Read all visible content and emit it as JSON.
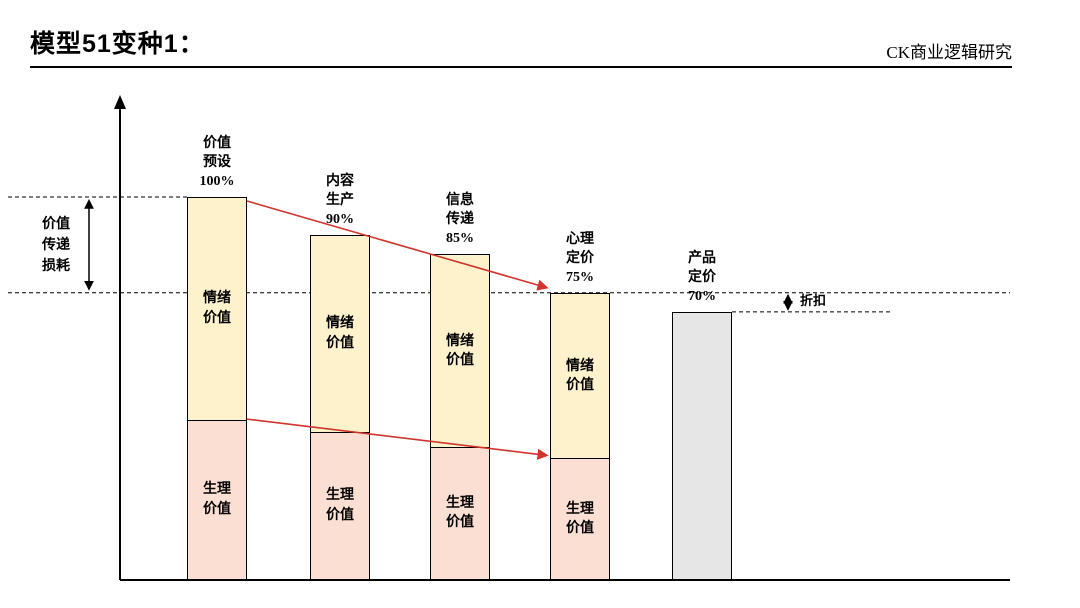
{
  "header": {
    "title": "模型51变种1：",
    "source": "CK商业逻辑研究"
  },
  "chart_data": {
    "type": "bar",
    "stacked": true,
    "ylim": [
      0,
      100
    ],
    "unit": "%",
    "grid": false,
    "legend": "none",
    "categories": [
      "价值预设",
      "内容生产",
      "信息传递",
      "心理定价",
      "产品定价"
    ],
    "bar_labels": [
      "价值\n预设\n100%",
      "内容\n生产\n90%",
      "信息\n传递\n85%",
      "心理\n定价\n75%",
      "产品\n定价\n70%"
    ],
    "totals": [
      100,
      90,
      85,
      75,
      70
    ],
    "series": [
      {
        "name": "生理价值",
        "values": [
          42,
          39,
          35,
          32,
          0
        ]
      },
      {
        "name": "情绪价值",
        "values": [
          58,
          51,
          50,
          43,
          0
        ]
      },
      {
        "name": "产品定价",
        "values": [
          0,
          0,
          0,
          0,
          70
        ]
      }
    ],
    "segment_labels": {
      "emotion": "情绪\n价值",
      "physio": "生理\n价值"
    },
    "annotations": {
      "left_loss": "价值\n传递\n损耗",
      "discount": "折扣"
    },
    "arrows": [
      {
        "from_bar": 1,
        "to_bar": 4,
        "at": "top"
      },
      {
        "from_bar": 1,
        "to_bar": 4,
        "at": "segment-split"
      }
    ],
    "colors": {
      "emotion_fill": "#FDF2CC",
      "physio_fill": "#FBDFD2",
      "product_fill": "#E7E6E6",
      "bar_border": "#000000",
      "arrow_red": "#D0342C",
      "axis": "#000000"
    }
  }
}
